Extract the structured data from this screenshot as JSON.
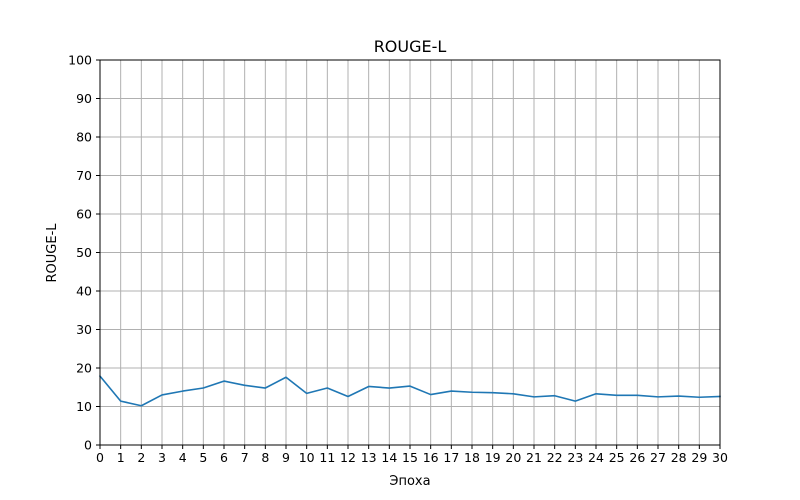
{
  "chart_data": {
    "type": "line",
    "title": "ROUGE-L",
    "xlabel": "Эпоха",
    "ylabel": "ROUGE-L",
    "xlim": [
      0,
      30
    ],
    "ylim": [
      0,
      100
    ],
    "xticks": [
      0,
      1,
      2,
      3,
      4,
      5,
      6,
      7,
      8,
      9,
      10,
      11,
      12,
      13,
      14,
      15,
      16,
      17,
      18,
      19,
      20,
      21,
      22,
      23,
      24,
      25,
      26,
      27,
      28,
      29,
      30
    ],
    "yticks": [
      0,
      10,
      20,
      30,
      40,
      50,
      60,
      70,
      80,
      90,
      100
    ],
    "grid": true,
    "series": [
      {
        "color": "#1f77b4",
        "x": [
          0,
          1,
          2,
          3,
          4,
          5,
          6,
          7,
          8,
          9,
          10,
          11,
          12,
          13,
          14,
          15,
          16,
          17,
          18,
          19,
          20,
          21,
          22,
          23,
          24,
          25,
          26,
          27,
          28,
          29,
          30
        ],
        "y": [
          17.9,
          11.4,
          10.2,
          13.0,
          14.0,
          14.8,
          16.6,
          15.5,
          14.8,
          17.6,
          13.4,
          14.8,
          12.6,
          15.2,
          14.8,
          15.3,
          13.1,
          14.0,
          13.7,
          13.6,
          13.3,
          12.5,
          12.8,
          11.4,
          13.3,
          12.9,
          12.9,
          12.5,
          12.7,
          12.4,
          12.6
        ]
      }
    ]
  }
}
